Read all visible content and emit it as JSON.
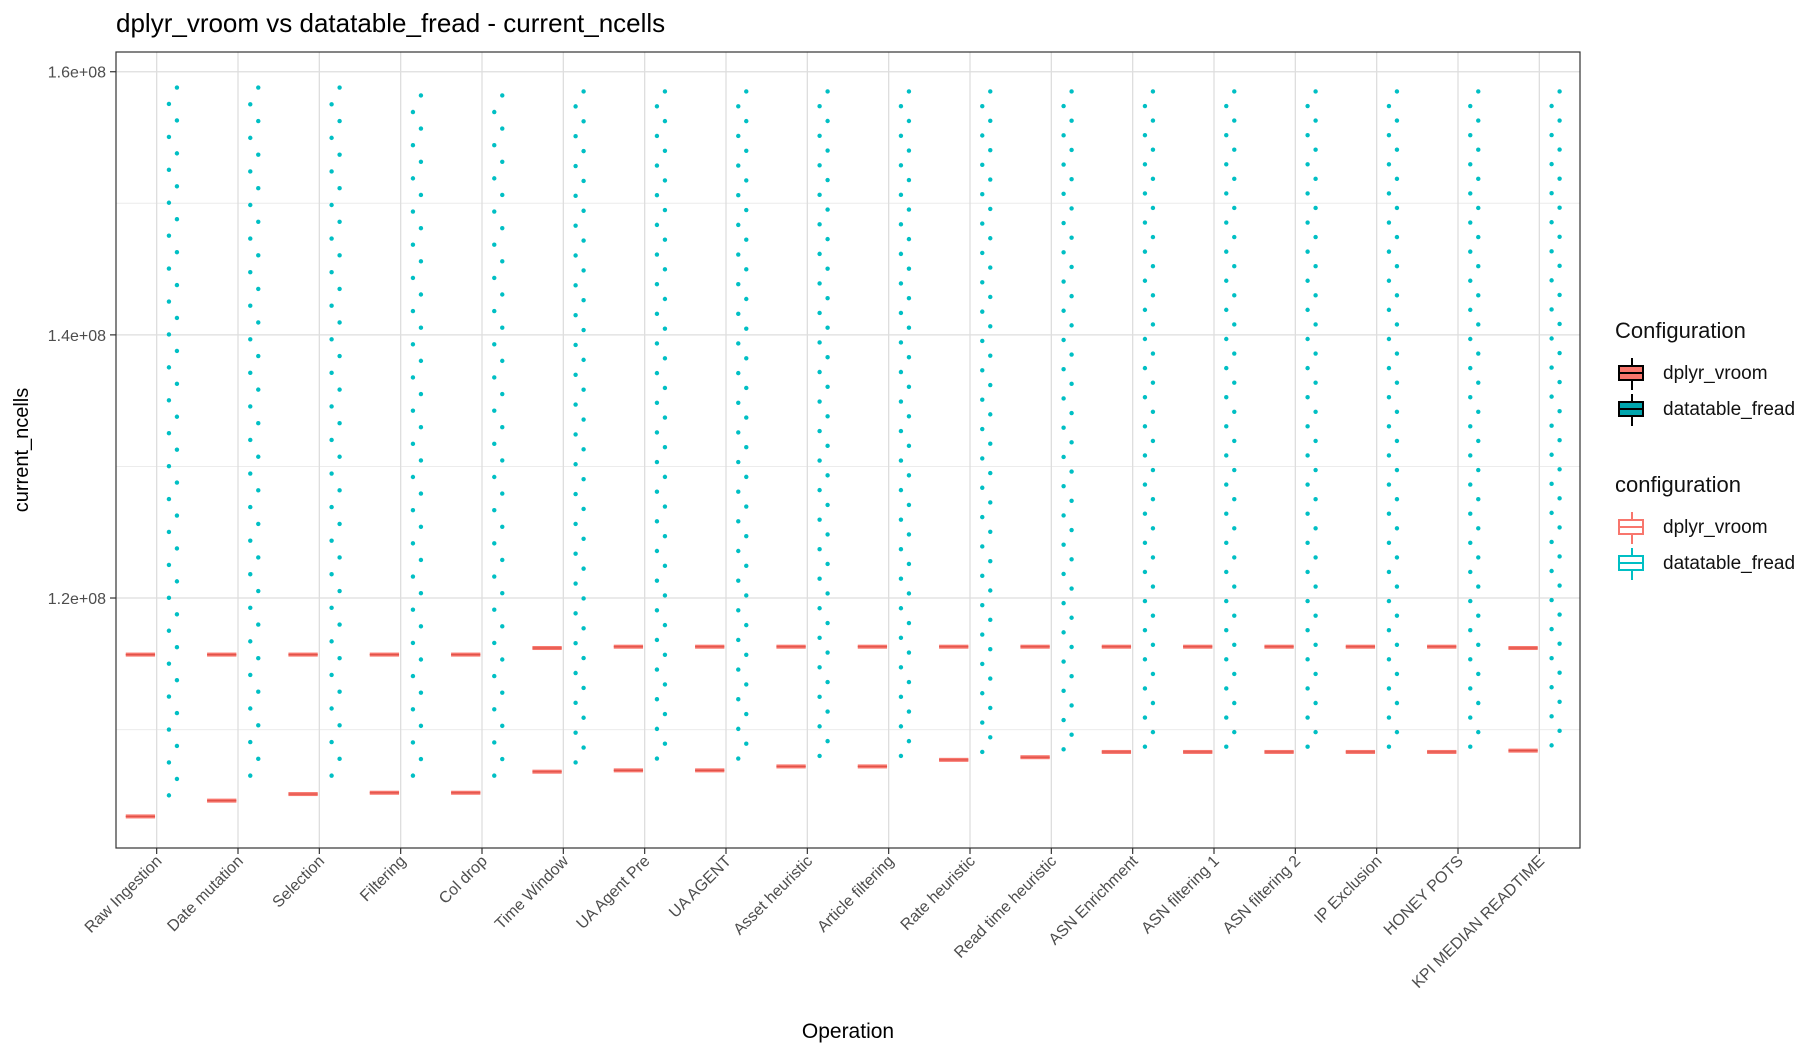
{
  "chart_data": {
    "type": "box",
    "title": "dplyr_vroom vs datatable_fread - current_ncells",
    "xlabel": "Operation",
    "ylabel": "current_ncells",
    "ylim": [
      101000000,
      161500000
    ],
    "yticks": [
      120000000,
      140000000,
      160000000
    ],
    "ytick_labels": [
      "1.2e+08",
      "1.4e+08",
      "1.6e+08"
    ],
    "grid": true,
    "legend_position": "right",
    "categories": [
      "Raw Ingestion",
      "Date mutation",
      "Selection",
      "Filtering",
      "Col drop",
      "Time Window",
      "UA Agent Pre",
      "UA AGENT",
      "Asset heuristic",
      "Article filtering",
      "Rate heuristic",
      "Read time heuristic",
      "ASN Enrichment",
      "ASN filtering 1",
      "ASN filtering 2",
      "IP Exclusion",
      "HONEY POTS",
      "KPI MEDIAN READTIME"
    ],
    "series": [
      {
        "name": "dplyr_vroom",
        "color": "#F8766D",
        "boxes_upper": [
          115700000,
          115700000,
          115700000,
          115700000,
          115700000,
          116200000,
          116300000,
          116300000,
          116300000,
          116300000,
          116300000,
          116300000,
          116300000,
          116300000,
          116300000,
          116300000,
          116300000,
          116200000
        ],
        "boxes_lower": [
          103400000,
          104600000,
          105100000,
          105200000,
          105200000,
          106800000,
          106900000,
          106900000,
          107200000,
          107200000,
          107700000,
          107900000,
          108300000,
          108300000,
          108300000,
          108300000,
          108300000,
          108400000
        ]
      },
      {
        "name": "datatable_fread",
        "color": "#00BFC4",
        "low": [
          105000000,
          106500000,
          106500000,
          106500000,
          106500000,
          107500000,
          107800000,
          107800000,
          108000000,
          108000000,
          108300000,
          108500000,
          108700000,
          108700000,
          108700000,
          108700000,
          108700000,
          108800000
        ],
        "high": [
          158800000,
          158800000,
          158800000,
          158200000,
          158200000,
          158500000,
          158500000,
          158500000,
          158500000,
          158500000,
          158500000,
          158500000,
          158500000,
          158500000,
          158500000,
          158500000,
          158500000,
          158500000
        ],
        "count": [
          44,
          42,
          42,
          42,
          42,
          46,
          46,
          46,
          46,
          46,
          46,
          46,
          46,
          46,
          46,
          46,
          46,
          46
        ]
      }
    ]
  },
  "legend": {
    "fill_title": "Configuration",
    "fill_items": [
      {
        "label": "dplyr_vroom",
        "color": "#F8766D"
      },
      {
        "label": "datatable_fread",
        "color": "#00A5AD"
      }
    ],
    "color_title": "configuration",
    "color_items": [
      {
        "label": "dplyr_vroom",
        "color": "#F8766D"
      },
      {
        "label": "datatable_fread",
        "color": "#00BFC4"
      }
    ]
  }
}
